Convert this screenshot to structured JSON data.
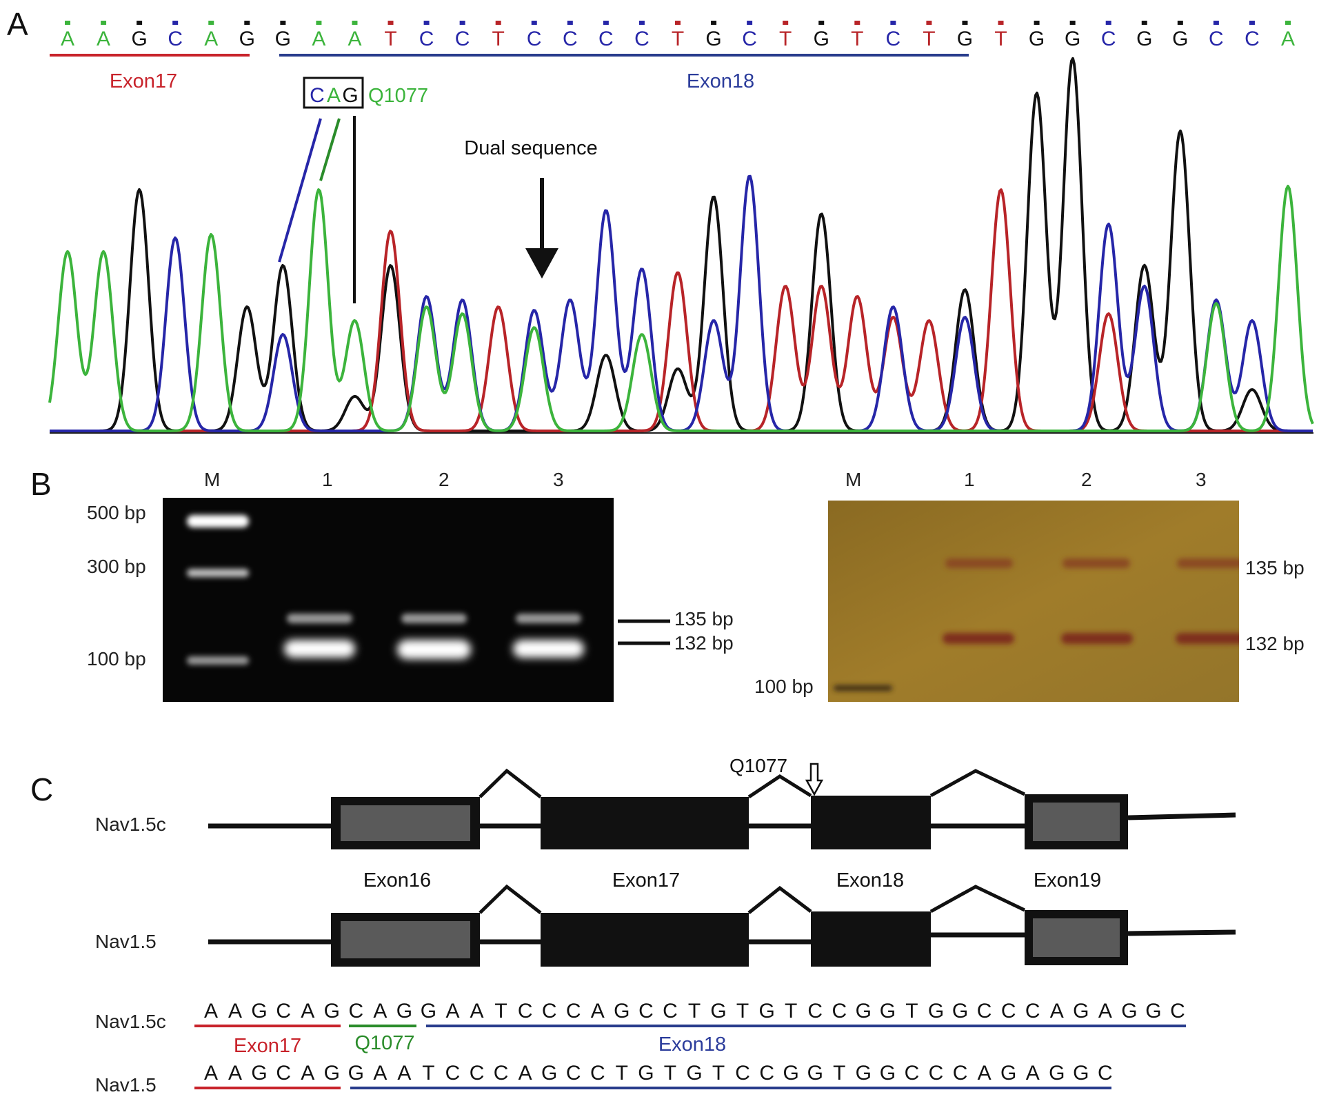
{
  "panel_a": {
    "letter": "A",
    "bases": [
      "A",
      "A",
      "G",
      "C",
      "A",
      "G",
      "G",
      "A",
      "A",
      "T",
      "C",
      "C",
      "T",
      "C",
      "C",
      "C",
      "C",
      "T",
      "G",
      "C",
      "T",
      "G",
      "T",
      "C",
      "T",
      "G",
      "T",
      "G",
      "G",
      "C",
      "G",
      "G",
      "C",
      "C",
      "A"
    ],
    "base_colors": {
      "A": "#3cb43c",
      "C": "#2626a8",
      "G": "#111111",
      "T": "#b82428"
    },
    "exon17_label": "Exon17",
    "exon18_label": "Exon18",
    "codon": [
      "C",
      "A",
      "G"
    ],
    "codon_label": "Q1077",
    "dual_label": "Dual sequence"
  },
  "panel_b": {
    "letter": "B",
    "lanes": [
      "M",
      "1",
      "2",
      "3"
    ],
    "left_gel": {
      "ladder": [
        "500 bp",
        "300 bp",
        "100 bp"
      ],
      "bands": [
        "135 bp",
        "132 bp"
      ]
    },
    "right_gel": {
      "ladder": [
        "100 bp"
      ],
      "bands": [
        "135 bp",
        "132 bp"
      ]
    }
  },
  "panel_c": {
    "letter": "C",
    "site_label": "Q1077",
    "isoforms": [
      "Nav1.5c",
      "Nav1.5"
    ],
    "exons": [
      "Exon16",
      "Exon17",
      "Exon18",
      "Exon19"
    ],
    "seq_nav15c": [
      "A",
      "A",
      "G",
      "C",
      "A",
      "G",
      "C",
      "A",
      "G",
      "G",
      "A",
      "A",
      "T",
      "C",
      "C",
      "C",
      "A",
      "G",
      "C",
      "C",
      "T",
      "G",
      "T",
      "G",
      "T",
      "C",
      "C",
      "G",
      "G",
      "T",
      "G",
      "G",
      "C",
      "C",
      "C",
      "A",
      "G",
      "A",
      "G",
      "G",
      "C"
    ],
    "seq_nav15": [
      "A",
      "A",
      "G",
      "C",
      "A",
      "G",
      "G",
      "A",
      "A",
      "T",
      "C",
      "C",
      "C",
      "A",
      "G",
      "C",
      "C",
      "T",
      "G",
      "T",
      "G",
      "T",
      "C",
      "C",
      "G",
      "G",
      "T",
      "G",
      "G",
      "C",
      "C",
      "C",
      "A",
      "G",
      "A",
      "G",
      "G",
      "C"
    ],
    "seq_labels": {
      "exon17": "Exon17",
      "q1077": "Q1077",
      "exon18": "Exon18"
    }
  }
}
